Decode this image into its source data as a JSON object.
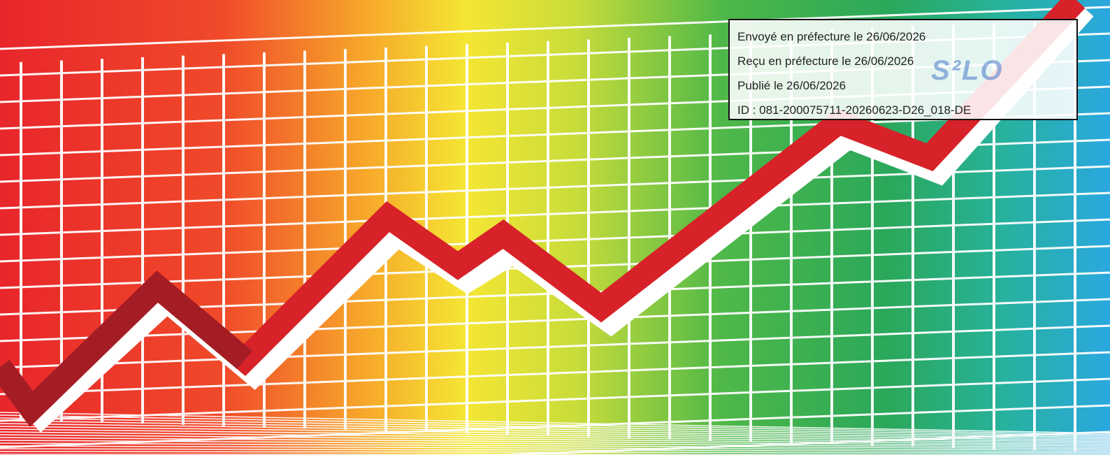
{
  "stamp": {
    "lines": [
      "Envoyé en préfecture le 26/06/2026",
      "Reçu en préfecture le 26/06/2026",
      "Publié le 26/06/2026",
      "ID : 081-200075711-20260623-D26_018-DE"
    ],
    "logo": "S²LO"
  }
}
